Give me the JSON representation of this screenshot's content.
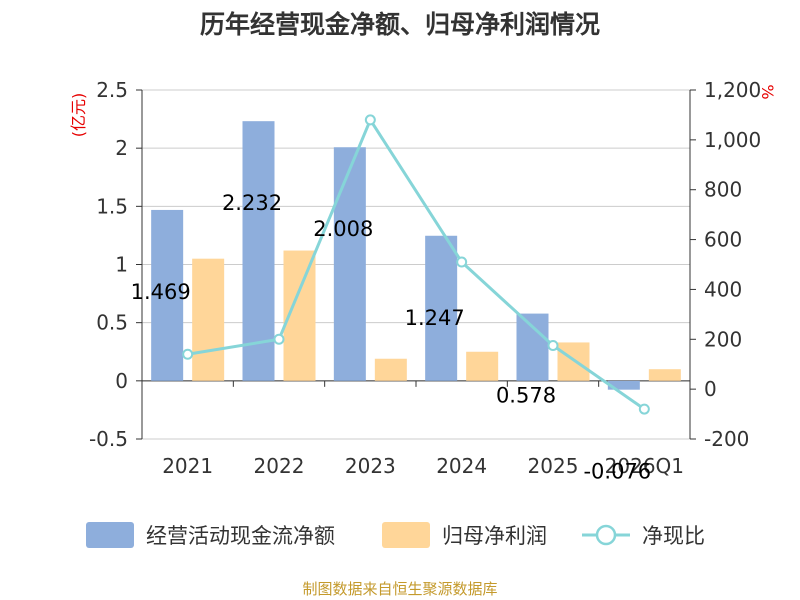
{
  "chart_data": {
    "type": "bar",
    "title": "历年经营现金净额、归母净利润情况",
    "categories": [
      "2021",
      "2022",
      "2023",
      "2024",
      "2025",
      "2026Q1"
    ],
    "left_axis": {
      "unit": "(亿元)",
      "ylim": [
        -0.5,
        2.5
      ],
      "ticks": [
        -0.5,
        0,
        0.5,
        1,
        1.5,
        2,
        2.5
      ],
      "tick_labels": [
        "-0.5",
        "0",
        "0.5",
        "1",
        "1.5",
        "2",
        "2.5"
      ]
    },
    "right_axis": {
      "unit": "%",
      "ylim": [
        -200,
        1200
      ],
      "ticks": [
        -200,
        0,
        200,
        400,
        600,
        800,
        1000,
        1200
      ],
      "tick_labels": [
        "-200",
        "0",
        "200",
        "400",
        "600",
        "800",
        "1,000",
        "1,200"
      ]
    },
    "series": [
      {
        "name": "经营活动现金流净额",
        "type": "bar",
        "axis": "left",
        "color": "#8eaedc",
        "values": [
          1.469,
          2.232,
          2.008,
          1.247,
          0.578,
          -0.076
        ],
        "labels": [
          "1.469",
          "2.232",
          "2.008",
          "1.247",
          "0.578",
          "-0.076"
        ]
      },
      {
        "name": "归母净利润",
        "type": "bar",
        "axis": "left",
        "color": "#ffd699",
        "values": [
          1.05,
          1.12,
          0.19,
          0.25,
          0.33,
          0.1
        ]
      },
      {
        "name": "净现比",
        "type": "line",
        "axis": "right",
        "color": "#86d5d8",
        "values": [
          140,
          200,
          1080,
          510,
          175,
          -80
        ]
      }
    ],
    "grid": true,
    "legend_position": "bottom"
  },
  "source": "制图数据来自恒生聚源数据库"
}
